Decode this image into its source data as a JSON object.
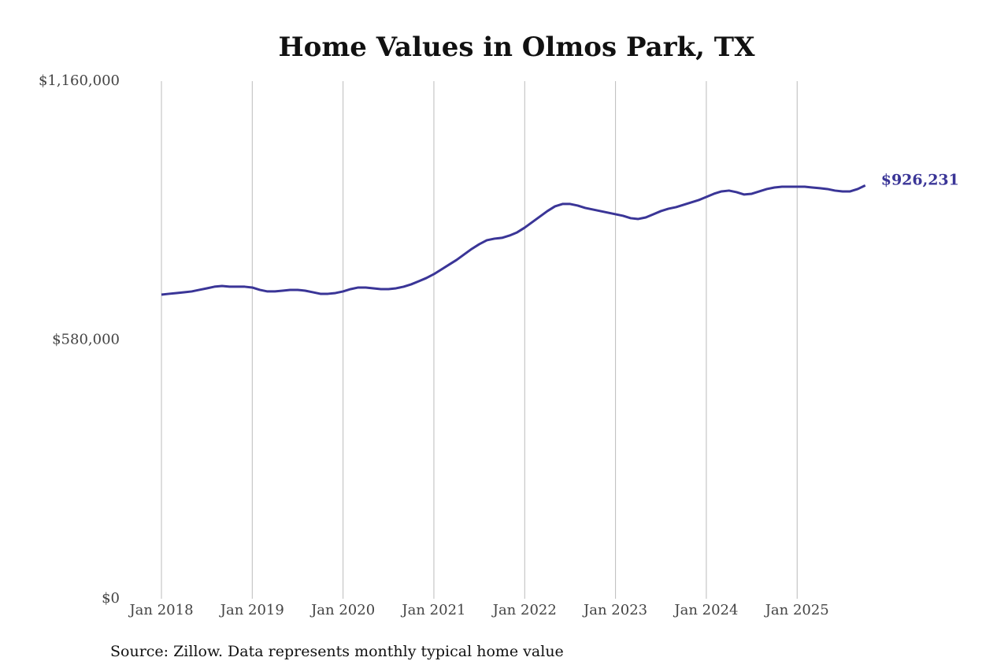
{
  "chart_data": {
    "type": "line",
    "title": "Home Values in Olmos Park, TX",
    "source": "Source: Zillow. Data represents monthly typical home value",
    "categories": [
      "Jan 2018",
      null,
      null,
      null,
      null,
      null,
      null,
      null,
      null,
      null,
      null,
      null,
      "Jan 2019",
      null,
      null,
      null,
      null,
      null,
      null,
      null,
      null,
      null,
      null,
      null,
      "Jan 2020",
      null,
      null,
      null,
      null,
      null,
      null,
      null,
      null,
      null,
      null,
      null,
      "Jan 2021",
      null,
      null,
      null,
      null,
      null,
      null,
      null,
      null,
      null,
      null,
      null,
      "Jan 2022",
      null,
      null,
      null,
      null,
      null,
      null,
      null,
      null,
      null,
      null,
      null,
      "Jan 2023",
      null,
      null,
      null,
      null,
      null,
      null,
      null,
      null,
      null,
      null,
      null,
      "Jan 2024",
      null,
      null,
      null,
      null,
      null,
      null,
      null,
      null,
      null,
      null,
      null,
      "Jan 2025",
      null,
      null,
      null,
      null,
      null,
      null,
      null,
      null,
      null
    ],
    "series": [
      {
        "name": "Typical home value",
        "color": "#3a3597",
        "values": [
          681600,
          683400,
          685100,
          686900,
          688700,
          692200,
          695700,
          699300,
          701000,
          699300,
          699300,
          699300,
          697500,
          692200,
          688700,
          688700,
          690400,
          692200,
          692200,
          690400,
          686900,
          683400,
          683400,
          685100,
          688700,
          693900,
          697500,
          697500,
          695700,
          693900,
          693900,
          695700,
          699300,
          704600,
          711600,
          718700,
          727500,
          738100,
          748700,
          759300,
          771700,
          784000,
          794600,
          803400,
          807000,
          808800,
          814000,
          821100,
          831700,
          844100,
          856400,
          868800,
          879400,
          884700,
          884700,
          881200,
          875800,
          872300,
          868800,
          865200,
          861700,
          858200,
          852900,
          851100,
          854600,
          861700,
          868800,
          874100,
          877600,
          882900,
          888200,
          893500,
          900500,
          907600,
          912900,
          914700,
          911200,
          905900,
          907600,
          912900,
          918200,
          921700,
          923500,
          923500,
          923500,
          923500,
          921700,
          920000,
          918200,
          914700,
          912900,
          912900,
          918200,
          926231
        ],
        "value_labels": [
          null,
          null,
          null,
          null,
          null,
          null,
          null,
          null,
          null,
          null,
          null,
          null,
          null,
          null,
          null,
          null,
          null,
          null,
          null,
          null,
          null,
          null,
          null,
          null,
          null,
          null,
          null,
          null,
          null,
          null,
          null,
          null,
          null,
          null,
          null,
          null,
          null,
          null,
          null,
          null,
          null,
          null,
          null,
          null,
          null,
          null,
          null,
          null,
          null,
          null,
          null,
          null,
          null,
          null,
          null,
          null,
          null,
          null,
          null,
          null,
          null,
          null,
          null,
          null,
          null,
          null,
          null,
          null,
          null,
          null,
          null,
          null,
          null,
          null,
          null,
          null,
          null,
          null,
          null,
          null,
          null,
          null,
          null,
          null,
          null,
          null,
          null,
          null,
          null,
          null,
          null,
          null,
          null,
          "$926,231"
        ]
      }
    ],
    "ylim": [
      0,
      1160000
    ],
    "yticks": [
      {
        "value": 0,
        "label": "$0"
      },
      {
        "value": 580000,
        "label": "$580,000"
      },
      {
        "value": 1160000,
        "label": "$1,160,000"
      }
    ],
    "grid": "x"
  }
}
